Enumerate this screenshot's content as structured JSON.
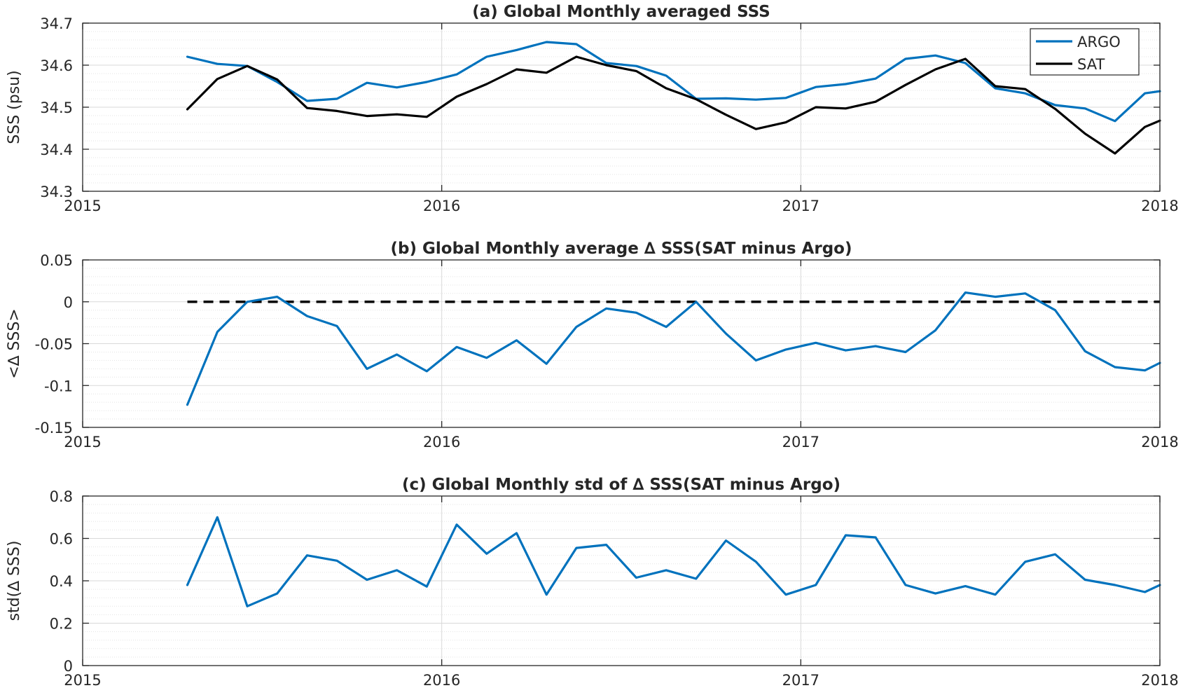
{
  "colors": {
    "argo": "#0072BD",
    "sat": "#000000",
    "zero_line": "#000000",
    "axis": "#262626",
    "grid_major": "#d9d9d9",
    "grid_minor": "#e3e3e3"
  },
  "chart_data": [
    {
      "id": "a",
      "type": "line",
      "title": "(a) Global Monthly averaged SSS",
      "xlabel": "",
      "ylabel": "SSS (psu)",
      "xlim": [
        2015,
        2018
      ],
      "ylim": [
        34.3,
        34.7
      ],
      "xticks": [
        2015,
        2016,
        2017,
        2018
      ],
      "xtick_labels": [
        "2015",
        "2016",
        "2017",
        "2018"
      ],
      "yticks": [
        34.3,
        34.4,
        34.5,
        34.6,
        34.7
      ],
      "ytick_labels": [
        "34.3",
        "34.4",
        "34.5",
        "34.6",
        "34.7"
      ],
      "grid": true,
      "minor_grid": true,
      "legend_position": "top-right",
      "series": [
        {
          "name": "ARGO",
          "color": "#0072BD",
          "x": [
            2015.2917,
            2015.375,
            2015.4583,
            2015.5417,
            2015.625,
            2015.7083,
            2015.7917,
            2015.875,
            2015.9583,
            2016.0417,
            2016.125,
            2016.2083,
            2016.2917,
            2016.375,
            2016.4583,
            2016.5417,
            2016.625,
            2016.7083,
            2016.7917,
            2016.875,
            2016.9583,
            2017.0417,
            2017.125,
            2017.2083,
            2017.2917,
            2017.375,
            2017.4583,
            2017.5417,
            2017.625,
            2017.7083,
            2017.7917,
            2017.875,
            2017.9583,
            2018.0
          ],
          "y": [
            34.62,
            34.603,
            34.598,
            34.56,
            34.515,
            34.52,
            34.558,
            34.547,
            34.56,
            34.578,
            34.62,
            34.636,
            34.655,
            34.65,
            34.605,
            34.598,
            34.575,
            34.52,
            34.521,
            34.518,
            34.522,
            34.548,
            34.555,
            34.568,
            34.615,
            34.623,
            34.605,
            34.545,
            34.533,
            34.505,
            34.497,
            34.467,
            34.533,
            34.538
          ]
        },
        {
          "name": "SAT",
          "color": "#000000",
          "x": [
            2015.2917,
            2015.375,
            2015.4583,
            2015.5417,
            2015.625,
            2015.7083,
            2015.7917,
            2015.875,
            2015.9583,
            2016.0417,
            2016.125,
            2016.2083,
            2016.2917,
            2016.375,
            2016.4583,
            2016.5417,
            2016.625,
            2016.7083,
            2016.7917,
            2016.875,
            2016.9583,
            2017.0417,
            2017.125,
            2017.2083,
            2017.2917,
            2017.375,
            2017.4583,
            2017.5417,
            2017.625,
            2017.7083,
            2017.7917,
            2017.875,
            2017.9583,
            2018.0
          ],
          "y": [
            34.495,
            34.567,
            34.598,
            34.566,
            34.498,
            34.491,
            34.479,
            34.483,
            34.477,
            34.525,
            34.555,
            34.59,
            34.582,
            34.62,
            34.6,
            34.586,
            34.545,
            34.519,
            34.482,
            34.448,
            34.464,
            34.5,
            34.497,
            34.513,
            34.553,
            34.59,
            34.615,
            34.55,
            34.543,
            34.496,
            34.437,
            34.39,
            34.453,
            34.468
          ]
        }
      ]
    },
    {
      "id": "b",
      "type": "line",
      "title": "(b) Global Monthly average ∆ SSS(SAT minus Argo)",
      "xlabel": "",
      "ylabel": "<∆ SSS>",
      "xlim": [
        2015,
        2018
      ],
      "ylim": [
        -0.15,
        0.05
      ],
      "xticks": [
        2015,
        2016,
        2017,
        2018
      ],
      "xtick_labels": [
        "2015",
        "2016",
        "2017",
        "2018"
      ],
      "yticks": [
        -0.15,
        -0.1,
        -0.05,
        0,
        0.05
      ],
      "ytick_labels": [
        "-0.15",
        "-0.1",
        "-0.05",
        "0",
        "0.05"
      ],
      "grid": true,
      "minor_grid": true,
      "reference_line": {
        "y": 0,
        "style": "dashed",
        "x_range": [
          2015.2917,
          2018.0
        ]
      },
      "series": [
        {
          "color": "#0072BD",
          "x": [
            2015.2917,
            2015.375,
            2015.4583,
            2015.5417,
            2015.625,
            2015.7083,
            2015.7917,
            2015.875,
            2015.9583,
            2016.0417,
            2016.125,
            2016.2083,
            2016.2917,
            2016.375,
            2016.4583,
            2016.5417,
            2016.625,
            2016.7083,
            2016.7917,
            2016.875,
            2016.9583,
            2017.0417,
            2017.125,
            2017.2083,
            2017.2917,
            2017.375,
            2017.4583,
            2017.5417,
            2017.625,
            2017.7083,
            2017.7917,
            2017.875,
            2017.9583,
            2018.0
          ],
          "y": [
            -0.123,
            -0.036,
            0.0,
            0.006,
            -0.017,
            -0.029,
            -0.08,
            -0.063,
            -0.083,
            -0.054,
            -0.067,
            -0.046,
            -0.074,
            -0.03,
            -0.008,
            -0.013,
            -0.03,
            0.0,
            -0.038,
            -0.07,
            -0.057,
            -0.049,
            -0.058,
            -0.053,
            -0.06,
            -0.034,
            0.011,
            0.006,
            0.01,
            -0.01,
            -0.059,
            -0.078,
            -0.082,
            -0.073
          ]
        }
      ]
    },
    {
      "id": "c",
      "type": "line",
      "title": "(c) Global Monthly std of ∆ SSS(SAT minus Argo)",
      "xlabel": "",
      "ylabel": "std(∆ SSS)",
      "xlim": [
        2015,
        2018
      ],
      "ylim": [
        0,
        0.8
      ],
      "xticks": [
        2015,
        2016,
        2017,
        2018
      ],
      "xtick_labels": [
        "2015",
        "2016",
        "2017",
        "2018"
      ],
      "yticks": [
        0,
        0.2,
        0.4,
        0.6,
        0.8
      ],
      "ytick_labels": [
        "0",
        "0.2",
        "0.4",
        "0.6",
        "0.8"
      ],
      "grid": true,
      "minor_grid": true,
      "series": [
        {
          "color": "#0072BD",
          "x": [
            2015.2917,
            2015.375,
            2015.4583,
            2015.5417,
            2015.625,
            2015.7083,
            2015.7917,
            2015.875,
            2015.9583,
            2016.0417,
            2016.125,
            2016.2083,
            2016.2917,
            2016.375,
            2016.4583,
            2016.5417,
            2016.625,
            2016.7083,
            2016.7917,
            2016.875,
            2016.9583,
            2017.0417,
            2017.125,
            2017.2083,
            2017.2917,
            2017.375,
            2017.4583,
            2017.5417,
            2017.625,
            2017.7083,
            2017.7917,
            2017.875,
            2017.9583,
            2018.0
          ],
          "y": [
            0.38,
            0.7,
            0.28,
            0.34,
            0.52,
            0.495,
            0.405,
            0.45,
            0.373,
            0.665,
            0.528,
            0.625,
            0.335,
            0.555,
            0.57,
            0.415,
            0.45,
            0.41,
            0.59,
            0.49,
            0.335,
            0.38,
            0.615,
            0.605,
            0.38,
            0.34,
            0.375,
            0.335,
            0.49,
            0.525,
            0.405,
            0.38,
            0.347,
            0.38
          ]
        }
      ]
    }
  ]
}
